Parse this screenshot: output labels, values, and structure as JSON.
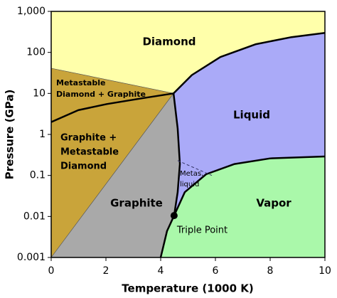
{
  "chart_data": {
    "type": "phase",
    "xlabel": "Temperature (1000 K)",
    "ylabel": "Pressure (GPa)",
    "xlim": [
      0,
      10
    ],
    "xticks": [
      0,
      2,
      4,
      6,
      8,
      10
    ],
    "ylim": [
      0.001,
      1000
    ],
    "yscale": "log",
    "yticks": [
      0.001,
      0.01,
      0.1,
      1,
      10,
      100,
      {
        "value": 1000,
        "label": "1,000"
      }
    ],
    "regions": [
      {
        "label": [
          "Diamond"
        ],
        "color": "#ffffaa",
        "x": [
          0,
          10,
          10,
          8.78,
          7.48,
          6.18,
          5.14,
          4.47,
          0
        ],
        "y": [
          1000,
          1000,
          300,
          236,
          159,
          77,
          28,
          10,
          41
        ]
      },
      {
        "label": [
          "Metastable",
          "Diamond + Graphite"
        ],
        "color": "#c9a43a",
        "x": [
          0,
          4.47,
          3.32,
          2.03,
          0.99,
          0
        ],
        "y": [
          41,
          10,
          7.6,
          5.5,
          3.9,
          2.0
        ]
      },
      {
        "label": [
          "Graphite +",
          "Metastable",
          "Diamond"
        ],
        "color": "#c9a43a",
        "x": [
          0,
          0.99,
          2.03,
          3.32,
          4.47,
          0
        ],
        "y": [
          2.0,
          3.9,
          5.5,
          7.6,
          10,
          0.001
        ]
      },
      {
        "label": [
          "Graphite"
        ],
        "color": "#a9a9a9",
        "x": [
          0,
          4.47,
          4.62,
          4.7,
          4.62,
          4.49,
          4.23,
          4.0
        ],
        "y": [
          0.001,
          10,
          1.4,
          0.19,
          0.039,
          0.0105,
          0.0044,
          0.001
        ]
      },
      {
        "label": [
          "Liquid"
        ],
        "color": "#aaaaf8",
        "x": [
          4.47,
          5.14,
          6.18,
          7.48,
          8.78,
          10,
          10,
          8,
          6.7,
          5.66,
          4.88,
          4.49,
          4.62,
          4.7,
          4.62
        ],
        "y": [
          10,
          28,
          77,
          159,
          236,
          300,
          0.29,
          0.26,
          0.19,
          0.107,
          0.039,
          0.0105,
          0.039,
          0.19,
          1.4
        ]
      },
      {
        "label": [
          "Vapor"
        ],
        "color": "#aaf8aa",
        "x": [
          4.49,
          4.88,
          5.66,
          6.7,
          8,
          10,
          10,
          4.0,
          4.23
        ],
        "y": [
          0.0105,
          0.039,
          0.107,
          0.19,
          0.26,
          0.29,
          0.001,
          0.001,
          0.0044
        ]
      }
    ],
    "lines": [
      {
        "x": [
          0,
          0.99,
          2.03,
          3.32,
          4.47
        ],
        "y": [
          2.0,
          3.9,
          5.5,
          7.6,
          10
        ],
        "color": "#000000",
        "width": 2.5
      },
      {
        "x": [
          4.47,
          5.14,
          6.18,
          7.48,
          8.78,
          10
        ],
        "y": [
          10,
          28,
          77,
          159,
          236,
          300
        ],
        "color": "#000000",
        "width": 2.5
      },
      {
        "x": [
          4.47,
          4.62,
          4.7,
          4.62,
          4.49
        ],
        "y": [
          10,
          1.4,
          0.19,
          0.039,
          0.0105
        ],
        "color": "#000000",
        "width": 2.5
      },
      {
        "x": [
          4.49,
          4.88,
          5.66,
          6.7,
          8,
          10
        ],
        "y": [
          0.0105,
          0.039,
          0.107,
          0.19,
          0.26,
          0.29
        ],
        "color": "#000000",
        "width": 2.5
      },
      {
        "x": [
          4.49,
          4.23,
          4.0
        ],
        "y": [
          0.0105,
          0.0044,
          0.001
        ],
        "color": "#000000",
        "width": 2.5
      },
      {
        "x": [
          4.62,
          5.87
        ],
        "y": [
          0.23,
          0.1
        ],
        "color": "#333366",
        "width": 1,
        "dash": true
      }
    ],
    "annotations": [
      {
        "label": [
          "Metas.",
          "liquid"
        ]
      }
    ],
    "points": [
      {
        "label": "Triple Point",
        "x": 4.49,
        "y": 0.0105,
        "color": "#000000"
      }
    ]
  }
}
